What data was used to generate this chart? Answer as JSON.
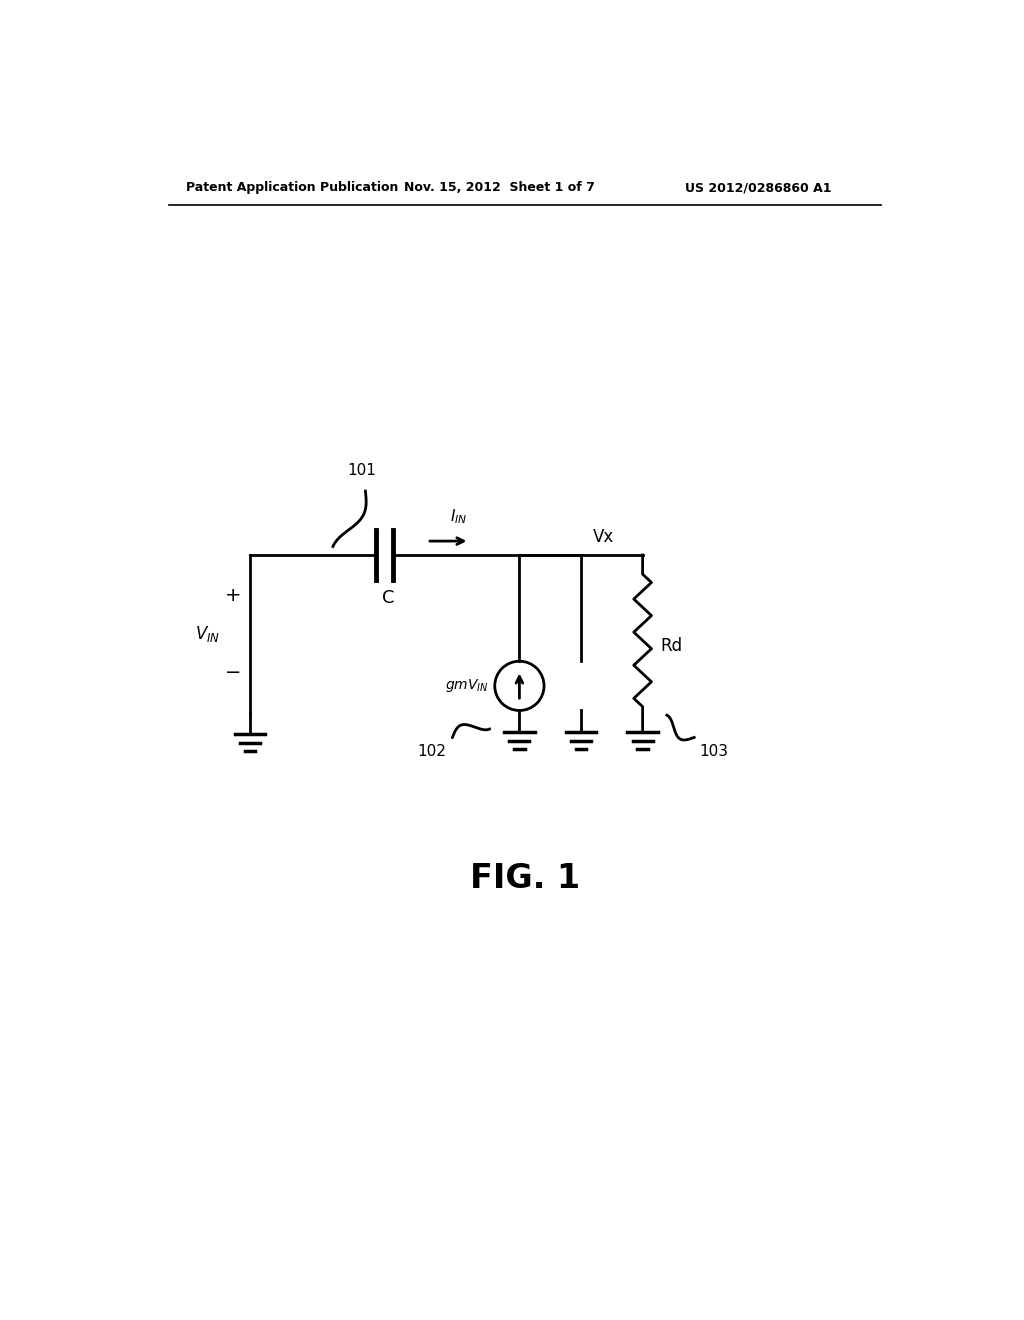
{
  "bg_color": "#ffffff",
  "line_color": "#000000",
  "header_left": "Patent Application Publication",
  "header_mid": "Nov. 15, 2012  Sheet 1 of 7",
  "header_right": "US 2012/0286860 A1",
  "fig_label": "FIG. 1",
  "label_101": "101",
  "label_102": "102",
  "label_103": "103",
  "label_IIN": "$I_{IN}$",
  "label_C": "C",
  "label_Vx": "Vx",
  "label_gmVIN": "$gmV_{IN}$",
  "label_Rd": "Rd",
  "label_VIN_plus": "+",
  "label_VIN_minus": "−",
  "label_VIN": "$V_{IN}$"
}
